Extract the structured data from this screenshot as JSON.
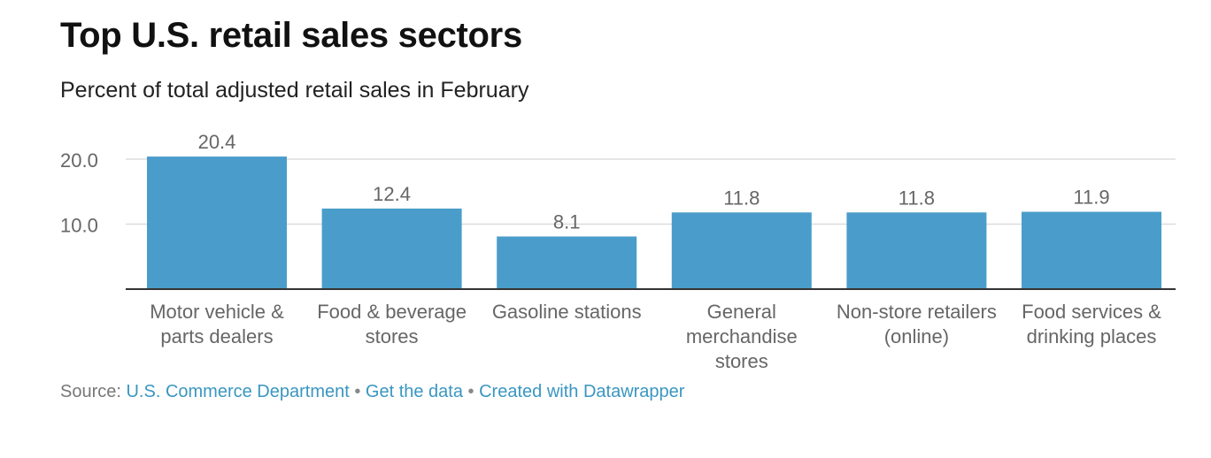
{
  "title": "Top U.S. retail sales sectors",
  "subtitle": "Percent of total adjusted retail sales in February",
  "footer": {
    "source_label": "Source: ",
    "source_link": "U.S. Commerce Department",
    "separator": " • ",
    "get_data": "Get the data",
    "created_with": "Created with Datawrapper"
  },
  "colors": {
    "bar": "#4a9dca",
    "grid": "#dddddd",
    "axis": "#333333",
    "label": "#666666"
  },
  "chart_data": {
    "type": "bar",
    "categories": [
      [
        "Motor vehicle &",
        "parts dealers"
      ],
      [
        "Food & beverage",
        "stores"
      ],
      [
        "Gasoline stations"
      ],
      [
        "General",
        "merchandise",
        "stores"
      ],
      [
        "Non-store retailers",
        "(online)"
      ],
      [
        "Food services &",
        "drinking places"
      ]
    ],
    "values": [
      20.4,
      12.4,
      8.1,
      11.8,
      11.8,
      11.9
    ],
    "value_labels": [
      "20.4",
      "12.4",
      "8.1",
      "11.8",
      "11.8",
      "11.9"
    ],
    "yticks": [
      10,
      20
    ],
    "ytick_labels": [
      "10.0",
      "20.0"
    ],
    "ylim": [
      0,
      20.4
    ],
    "grid": true
  }
}
